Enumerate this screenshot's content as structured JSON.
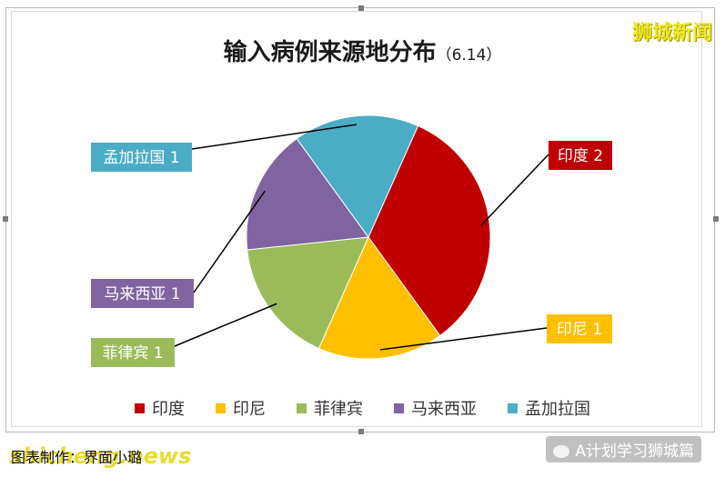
{
  "title": "输入病例来源地分布",
  "title_suffix": "（6.14）",
  "watermark_top": "狮城新闻",
  "watermark_bottom": "shicheng.news",
  "footnote": "图表制作：界面小璐",
  "account_label": "A计划学习狮城篇",
  "chart_data": {
    "type": "pie",
    "title": "输入病例来源地分布（6.14）",
    "categories": [
      "印度",
      "印尼",
      "菲律宾",
      "马来西亚",
      "孟加拉国"
    ],
    "values": [
      2,
      1,
      1,
      1,
      1
    ],
    "colors": [
      "#c00000",
      "#ffc000",
      "#9bbb59",
      "#8064a2",
      "#4bacc6"
    ],
    "data_labels": [
      "印度 2",
      "印尼 1",
      "菲律宾 1",
      "马来西亚 1",
      "孟加拉国 1"
    ],
    "legend_position": "bottom"
  }
}
